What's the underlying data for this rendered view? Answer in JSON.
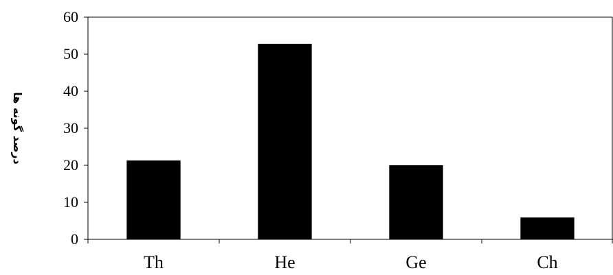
{
  "chart_data": {
    "type": "bar",
    "categories": [
      "Th",
      "He",
      "Ge",
      "Ch"
    ],
    "values": [
      21.3,
      52.8,
      20.0,
      5.9
    ],
    "ylabel": "درصد گونه ها",
    "xlabel": "",
    "title": "",
    "ylim": [
      0,
      60
    ],
    "yticks": [
      0,
      10,
      20,
      30,
      40,
      50,
      60
    ],
    "grid": false,
    "legend": "none",
    "bar_color": "#000000"
  }
}
